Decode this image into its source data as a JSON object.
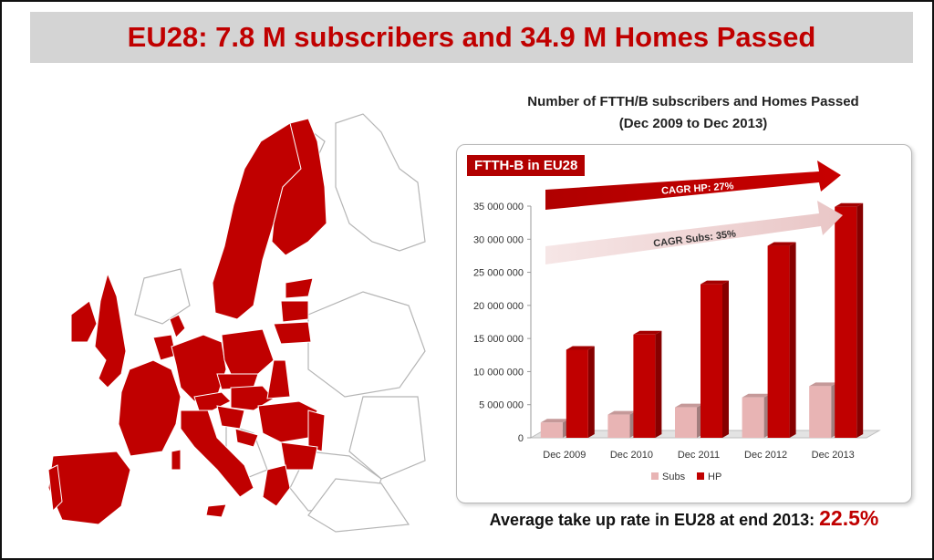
{
  "header": {
    "title": "EU28: 7.8 M subscribers and 34.9 M Homes Passed"
  },
  "chart_heading": {
    "line1": "Number of FTTH/B subscribers and Homes Passed",
    "line2": "(Dec 2009 to Dec 2013)"
  },
  "badge": {
    "label": "FTTH-B in EU28"
  },
  "arrows": {
    "hp_label": "CAGR HP: 27%",
    "subs_label": "CAGR Subs: 35%"
  },
  "footer": {
    "text": "Average take up rate in EU28 at end 2013: ",
    "rate": "22.5%"
  },
  "colors": {
    "accent": "#c00000",
    "subs": "#e8b4b4",
    "hp": "#c00000"
  },
  "chart_data": {
    "type": "bar",
    "title": "Number of FTTH/B subscribers and Homes Passed",
    "subtitle": "(Dec 2009 to Dec 2013)",
    "categories": [
      "Dec 2009",
      "Dec 2010",
      "Dec 2011",
      "Dec 2012",
      "Dec 2013"
    ],
    "series": [
      {
        "name": "Subs",
        "values": [
          2300000,
          3500000,
          4600000,
          6100000,
          7800000
        ]
      },
      {
        "name": "HP",
        "values": [
          13300000,
          15600000,
          23200000,
          29000000,
          34900000
        ]
      }
    ],
    "ylim": [
      0,
      35000000
    ],
    "y_ticks": [
      "0",
      "5 000 000",
      "10 000 000",
      "15 000 000",
      "20 000 000",
      "25 000 000",
      "30 000 000",
      "35 000 000"
    ],
    "legend": "bottom",
    "grid": false
  }
}
